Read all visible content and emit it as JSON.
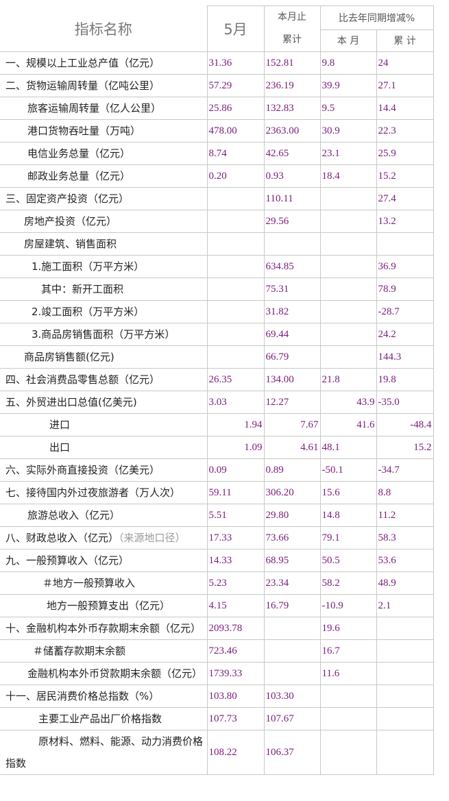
{
  "header": {
    "name": "指标名称",
    "month": "5月",
    "cumulative_top": "本月止",
    "cumulative_bottom": "累计",
    "change": "比去年同期增减%",
    "change_month": "本 月",
    "change_cumulative": "累 计"
  },
  "rows": [
    {
      "label": "一、规模以上工业总产值（亿元）",
      "cells": [
        "31.36",
        "152.81",
        "9.8",
        "24"
      ]
    },
    {
      "label": "二、货物运输周转量（亿吨公里）",
      "cells": [
        "57.29",
        "236.19",
        "39.9",
        "27.1"
      ]
    },
    {
      "label": "旅客运输周转量（亿人公里）",
      "cells": [
        "25.86",
        "132.83",
        "9.5",
        "14.4"
      ]
    },
    {
      "label": "港口货物吞吐量（万吨）",
      "cells": [
        "478.00",
        "2363.00",
        "30.9",
        "22.3"
      ]
    },
    {
      "label": "电信业务总量（亿元）",
      "cells": [
        "8.74",
        "42.65",
        "23.1",
        "25.9"
      ]
    },
    {
      "label": "邮政业务总量（亿元）",
      "cells": [
        "0.20",
        "0.93",
        "18.4",
        "15.2"
      ]
    },
    {
      "label": "三、固定资产投资（亿元）",
      "cells": [
        null,
        "110.11",
        null,
        "27.4"
      ]
    },
    {
      "label": "房地产投资（亿元）",
      "cells": [
        null,
        "29.56",
        null,
        "13.2"
      ]
    },
    {
      "label": "房屋建筑、销售面积",
      "cells": [
        null,
        null,
        null,
        null
      ]
    },
    {
      "label": "1.施工面积（万平方米）",
      "cells": [
        null,
        "634.85",
        null,
        "36.9"
      ]
    },
    {
      "label": "其中：新开工面积",
      "cells": [
        null,
        "75.31",
        null,
        "78.9"
      ]
    },
    {
      "label": "2.竣工面积（万平方米）",
      "cells": [
        null,
        "31.82",
        null,
        "-28.7"
      ]
    },
    {
      "label": "3.商品房销售面积（万平方米）",
      "cells": [
        null,
        "69.44",
        null,
        "24.2"
      ]
    },
    {
      "label": "商品房销售额(亿元)",
      "cells": [
        null,
        "66.79",
        null,
        "144.3"
      ]
    },
    {
      "label": "四、社会消费品零售总额（亿元）",
      "cells": [
        "26.35",
        "134.00",
        "21.8",
        "19.8"
      ]
    },
    {
      "label": "五、外贸进出口总值(亿美元)",
      "cells": [
        "3.03",
        "12.27",
        "43.9",
        "-35.0"
      ]
    },
    {
      "label": "进口",
      "cells": [
        "1.94",
        "7.67",
        "41.6",
        "-48.4"
      ]
    },
    {
      "label": "出口",
      "cells": [
        "1.09",
        "4.61",
        "48.1",
        "15.2"
      ]
    },
    {
      "label": "六、实际外商直接投资（亿美元）",
      "cells": [
        "0.09",
        "0.89",
        "-50.1",
        "-34.7"
      ]
    },
    {
      "label": "七、接待国内外过夜旅游者（万人次）",
      "cells": [
        "59.11",
        "306.20",
        "15.6",
        "8.8"
      ]
    },
    {
      "label": "旅游总收入（亿元）",
      "cells": [
        "5.51",
        "29.80",
        "14.8",
        "11.2"
      ]
    },
    {
      "label": "八、财政总收入（亿元）",
      "note": "（来源地口径）",
      "cells": [
        "17.33",
        "73.66",
        "79.1",
        "58.3"
      ]
    },
    {
      "label": "九、一般预算收入（亿元）",
      "cells": [
        "14.33",
        "68.95",
        "50.5",
        "53.6"
      ]
    },
    {
      "label": "＃地方一般预算收入",
      "cells": [
        "5.23",
        "23.34",
        "58.2",
        "48.9"
      ]
    },
    {
      "label": "地方一般预算支出（亿元）",
      "cells": [
        "4.15",
        "16.79",
        "-10.9",
        "2.1"
      ]
    },
    {
      "label": "十、金融机构本外币存款期末余额（亿元）",
      "cells": [
        "2093.78",
        null,
        "19.6",
        null
      ]
    },
    {
      "label": "＃储蓄存款期末余额",
      "cells": [
        "723.46",
        null,
        "16.7",
        null
      ]
    },
    {
      "label": "金融机构本外币贷款期末余额（亿元）",
      "cells": [
        "1739.33",
        null,
        "11.6",
        null
      ]
    },
    {
      "label": "十一、居民消费价格总指数（%）",
      "cells": [
        "103.80",
        "103.30",
        null,
        null
      ]
    },
    {
      "label": "主要工业产品出厂价格指数",
      "cells": [
        "107.73",
        "107.67",
        null,
        null
      ]
    },
    {
      "label": "原材料、燃料、能源、动力消费价格指数",
      "cells": [
        "108.22",
        "106.37",
        null,
        null
      ]
    }
  ]
}
